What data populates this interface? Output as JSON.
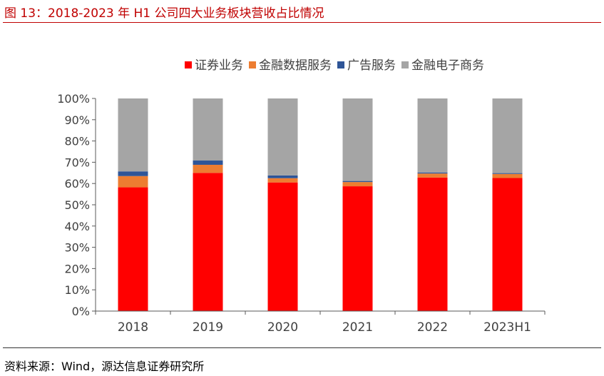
{
  "header": {
    "title": "图 13：2018-2023 年 H1 公司四大业务板块营收占比情况"
  },
  "footer": {
    "source": "资料来源：Wind，源达信息证券研究所"
  },
  "chart_data": {
    "type": "bar",
    "stacked": true,
    "categories": [
      "2018",
      "2019",
      "2020",
      "2021",
      "2022",
      "2023H1"
    ],
    "series": [
      {
        "name": "证券业务",
        "color": "#ff0000",
        "values": [
          58.2,
          65.0,
          60.5,
          58.7,
          62.8,
          62.6
        ]
      },
      {
        "name": "金融数据服务",
        "color": "#ed7d31",
        "values": [
          5.3,
          3.8,
          2.0,
          2.0,
          1.9,
          1.9
        ]
      },
      {
        "name": "广告服务",
        "color": "#2f5597",
        "values": [
          2.2,
          2.0,
          1.3,
          0.5,
          0.5,
          0.4
        ]
      },
      {
        "name": "金融电子商务",
        "color": "#a5a5a5",
        "values": [
          34.3,
          29.2,
          36.2,
          38.8,
          34.8,
          35.1
        ]
      }
    ],
    "ylim": [
      0,
      100
    ],
    "yticks": [
      "0%",
      "10%",
      "20%",
      "30%",
      "40%",
      "50%",
      "60%",
      "70%",
      "80%",
      "90%",
      "100%"
    ],
    "legend_position": "top",
    "grid": false
  }
}
